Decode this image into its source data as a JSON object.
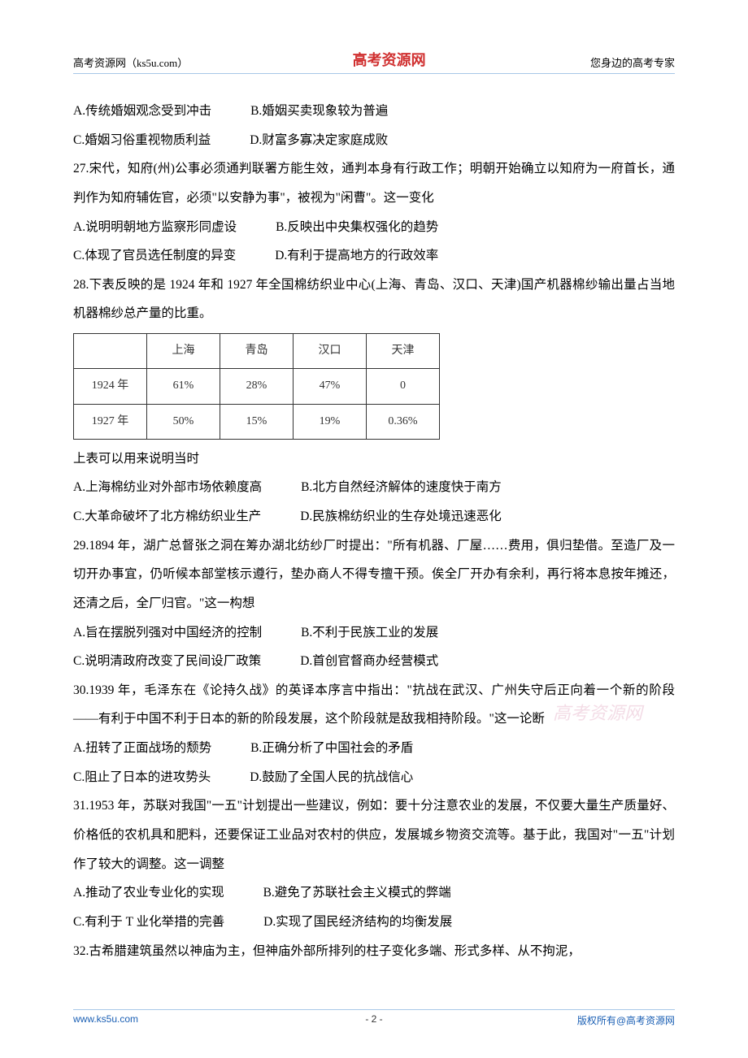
{
  "header": {
    "left": "高考资源网（ks5u.com）",
    "center": "高考资源网",
    "right": "您身边的高考专家"
  },
  "q26": {
    "a": "A.传统婚姻观念受到冲击",
    "b": "B.婚姻买卖现象较为普遍",
    "c": "C.婚姻习俗重视物质利益",
    "d": "D.财富多寡决定家庭成败"
  },
  "q27": {
    "stem": "27.宋代，知府(州)公事必须通判联署方能生效，通判本身有行政工作；明朝开始确立以知府为一府首长，通判作为知府辅佐官，必须\"以安静为事\"，被视为\"闲曹\"。这一变化",
    "a": "A.说明明朝地方监察形同虚设",
    "b": "B.反映出中央集权强化的趋势",
    "c": "C.体现了官员选任制度的异变",
    "d": "D.有利于提高地方的行政效率"
  },
  "q28": {
    "stem": "28.下表反映的是 1924 年和 1927 年全国棉纺织业中心(上海、青岛、汉口、天津)国产机器棉纱输出量占当地机器棉纱总产量的比重。",
    "table": {
      "cols": [
        "",
        "上海",
        "青岛",
        "汉口",
        "天津"
      ],
      "rows": [
        [
          "1924 年",
          "61%",
          "28%",
          "47%",
          "0"
        ],
        [
          "1927 年",
          "50%",
          "15%",
          "19%",
          "0.36%"
        ]
      ]
    },
    "lead": "上表可以用来说明当时",
    "a": "A.上海棉纺业对外部市场依赖度高",
    "b": "B.北方自然经济解体的速度快于南方",
    "c": "C.大革命破坏了北方棉纺织业生产",
    "d": "D.民族棉纺织业的生存处境迅速恶化"
  },
  "q29": {
    "stem": "29.1894 年，湖广总督张之洞在筹办湖北纺纱厂时提出：\"所有机器、厂屋……费用，俱归垫借。至造厂及一切开办事宜，仍听候本部堂核示遵行，垫办商人不得专擅干预。俟全厂开办有余利，再行将本息按年摊还，还清之后，全厂归官。\"这一构想",
    "a": "A.旨在摆脱列强对中国经济的控制",
    "b": "B.不利于民族工业的发展",
    "c": "C.说明清政府改变了民间设厂政策",
    "d": "D.首创官督商办经营模式"
  },
  "q30": {
    "stem": "30.1939 年，毛泽东在《论持久战》的英译本序言中指出：\"抗战在武汉、广州失守后正向着一个新的阶段——有利于中国不利于日本的新的阶段发展，这个阶段就是敌我相持阶段。\"这一论断",
    "a": "A.扭转了正面战场的颓势",
    "b": "B.正确分析了中国社会的矛盾",
    "c": "C.阻止了日本的进攻势头",
    "d": "D.鼓励了全国人民的抗战信心"
  },
  "q31": {
    "stem": "31.1953 年，苏联对我国\"一五\"计划提出一些建议，例如：要十分注意农业的发展，不仅要大量生产质量好、价格低的农机具和肥料，还要保证工业品对农村的供应，发展城乡物资交流等。基于此，我国对\"一五\"计划作了较大的调整。这一调整",
    "a": "A.推动了农业专业化的实现",
    "b": "B.避免了苏联社会主义模式的弊端",
    "c": "C.有利于 T 业化举措的完善",
    "d": "D.实现了国民经济结构的均衡发展"
  },
  "q32": {
    "stem": "32.古希腊建筑虽然以神庙为主，但神庙外部所排列的柱子变化多端、形式多样、从不拘泥，"
  },
  "watermark": "高考资源网",
  "footer": {
    "left": "www.ks5u.com",
    "center": "- 2 -",
    "right": "版权所有@高考资源网"
  }
}
